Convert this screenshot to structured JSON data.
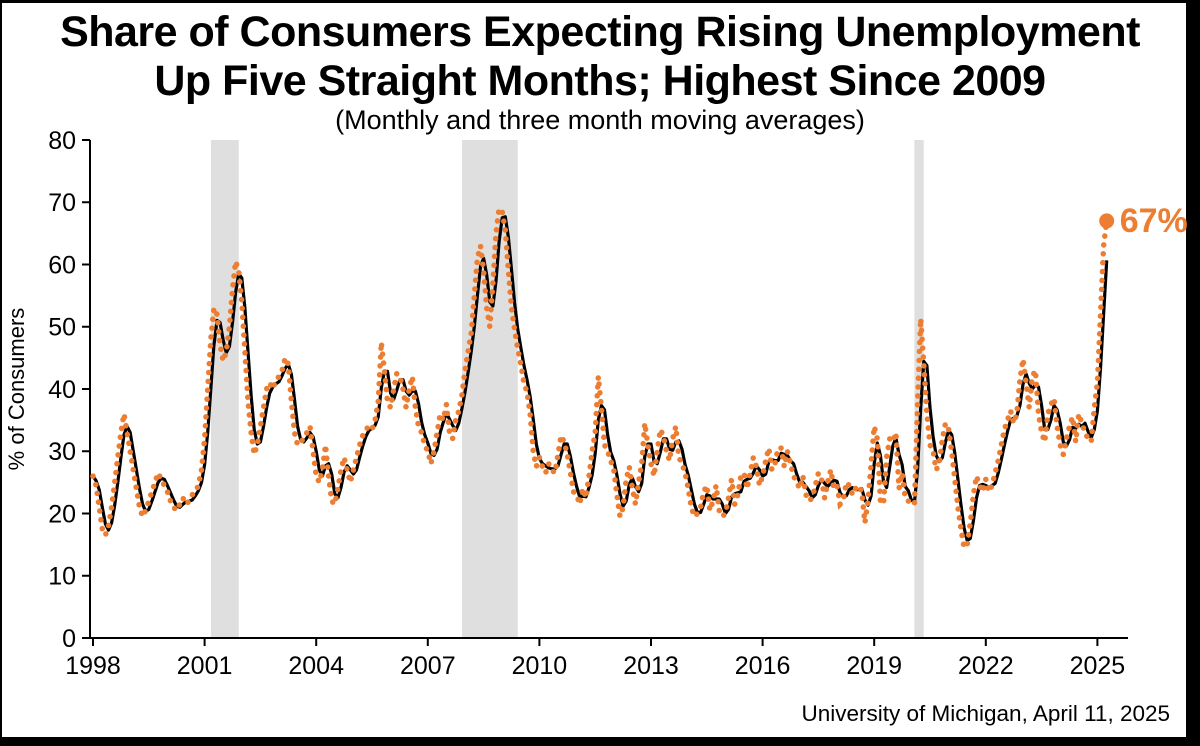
{
  "title": {
    "line1": "Share of Consumers Expecting Rising Unemployment",
    "line2": "Up Five Straight Months; Highest Since 2009",
    "subtitle": "(Monthly and three month moving averages)"
  },
  "source": {
    "text": "University of Michigan, April 11, 2025"
  },
  "colors": {
    "monthly_dots": "#ED7D31",
    "moving_average_line": "#000000",
    "recession_band": "#DFDFDF",
    "axis": "#000000",
    "frame": "#000000",
    "background": "#FFFFFF"
  },
  "chart_data": {
    "type": "line",
    "title": "Share of Consumers Expecting Rising Unemployment Up Five Straight Months; Highest Since 2009",
    "subtitle": "(Monthly and three month moving averages)",
    "xlabel": "",
    "ylabel": "% of Consumers",
    "ylim": [
      0,
      80
    ],
    "yticks": [
      0,
      10,
      20,
      30,
      40,
      50,
      60,
      70,
      80
    ],
    "xticks": [
      1998,
      2001,
      2004,
      2007,
      2010,
      2013,
      2016,
      2019,
      2022,
      2025
    ],
    "grid": false,
    "legend": "none",
    "x_start": {
      "year": 1998,
      "month": 1
    },
    "x_end": {
      "year": 2025,
      "month": 4
    },
    "recession_bands_years": [
      {
        "start": 2001.17,
        "end": 2001.92
      },
      {
        "start": 2007.92,
        "end": 2009.42
      },
      {
        "start": 2020.08,
        "end": 2020.33
      }
    ],
    "end_label": {
      "text": "67%",
      "value": 67
    },
    "series": [
      {
        "name": "Monthly",
        "style": "dotted",
        "color": "#ED7D31",
        "values_by_year": {
          "1998": [
            26,
            24.5,
            21,
            17.5,
            16.5,
            18,
            21,
            25,
            29,
            33,
            36,
            33
          ],
          "1999": [
            30,
            27,
            24,
            21,
            19.5,
            20.5,
            22,
            23.5,
            25,
            26.5,
            25.5,
            24.5
          ],
          "2000": [
            23.5,
            22,
            21,
            20.5,
            21.5,
            22.5,
            21.5,
            22,
            23,
            23.5,
            24.5,
            27
          ],
          "2001": [
            32,
            40,
            48,
            53,
            52,
            47,
            44.5,
            46,
            50,
            56,
            60.5,
            59
          ],
          "2002": [
            54,
            46,
            38,
            33,
            29.5,
            31,
            34,
            37,
            40,
            41,
            40,
            41.5
          ],
          "2003": [
            42,
            43,
            45,
            44,
            38,
            33,
            31,
            31.5,
            32,
            33,
            34,
            30
          ],
          "2004": [
            26,
            25,
            27,
            31,
            26,
            22,
            21.5,
            24,
            27,
            29,
            27,
            25
          ],
          "2005": [
            27,
            29,
            31,
            32.5,
            33.5,
            34,
            33.5,
            35,
            38,
            47.5,
            43,
            38
          ],
          "2006": [
            37,
            40,
            42.5,
            42,
            40,
            37,
            40,
            42,
            37,
            34,
            33,
            31
          ],
          "2007": [
            30,
            28,
            30,
            33,
            36,
            35,
            37.5,
            33,
            32,
            35,
            36.5,
            39
          ],
          "2008": [
            43,
            46,
            49,
            55,
            61,
            63,
            59,
            53,
            50,
            57,
            65,
            69
          ],
          "2009": [
            68.5,
            65.5,
            59,
            53,
            49.5,
            46.5,
            44,
            41,
            39.5,
            36,
            30,
            27.5
          ],
          "2010": [
            29,
            27.5,
            26.5,
            28,
            27,
            26.5,
            29.5,
            32.5,
            31.5,
            29.5,
            26.5,
            23.5
          ],
          "2011": [
            23,
            21.5,
            24,
            22.5,
            26,
            30,
            33,
            42,
            37,
            31,
            30,
            28.5
          ],
          "2012": [
            27,
            23,
            19.5,
            21,
            25.5,
            27.5,
            24,
            21.5,
            25,
            28,
            34.5,
            31
          ],
          "2013": [
            28,
            26,
            30,
            33.5,
            32.5,
            30,
            28.5,
            32,
            34,
            29,
            28,
            26.5
          ],
          "2014": [
            24,
            21,
            19.5,
            20,
            21,
            23.5,
            24.5,
            20.5,
            22,
            24.5,
            20.5,
            19.5
          ],
          "2015": [
            20,
            22.5,
            25.5,
            21.5,
            23,
            26,
            26.5,
            24,
            26.5,
            29,
            27.5,
            24.5
          ],
          "2016": [
            26,
            28.5,
            30.5,
            27,
            28,
            30.5,
            30.5,
            27.5,
            30,
            28,
            26,
            25
          ],
          "2017": [
            24,
            26,
            23,
            22,
            22.5,
            24.5,
            26.5,
            25.5,
            22.5,
            25,
            27,
            24
          ],
          "2018": [
            24.5,
            21.5,
            22,
            25,
            24.5,
            23,
            24,
            24.5,
            23.5,
            18.5,
            22,
            28
          ],
          "2019": [
            34,
            32,
            22,
            21.5,
            29,
            32,
            31.5,
            33,
            24,
            26.5,
            22.5,
            22
          ],
          "2020": [
            22,
            21.5,
            38,
            51.3,
            44,
            36,
            31,
            30,
            27,
            28,
            32,
            34.5
          ],
          "2021": [
            33.5,
            30,
            25.5,
            21,
            17.5,
            14.5,
            15,
            18.5,
            23,
            26,
            24.5,
            23.5
          ],
          "2022": [
            25.5,
            23.5,
            24.5,
            26.5,
            28.5,
            31,
            33.5,
            35,
            36.5,
            34.5,
            36,
            41.5
          ],
          "2023": [
            44.8,
            41,
            37,
            42,
            43,
            36,
            33,
            31.5,
            36,
            37.5,
            38.5,
            34
          ],
          "2024": [
            31,
            29.5,
            32,
            34,
            35.5,
            31.5,
            36,
            34.5,
            33,
            32,
            31.5,
            37
          ],
          "2025": [
            41,
            52,
            63,
            67
          ]
        }
      },
      {
        "name": "Three month moving average",
        "style": "solid",
        "color": "#000000",
        "derived": "3-month moving average of Monthly series"
      }
    ]
  }
}
